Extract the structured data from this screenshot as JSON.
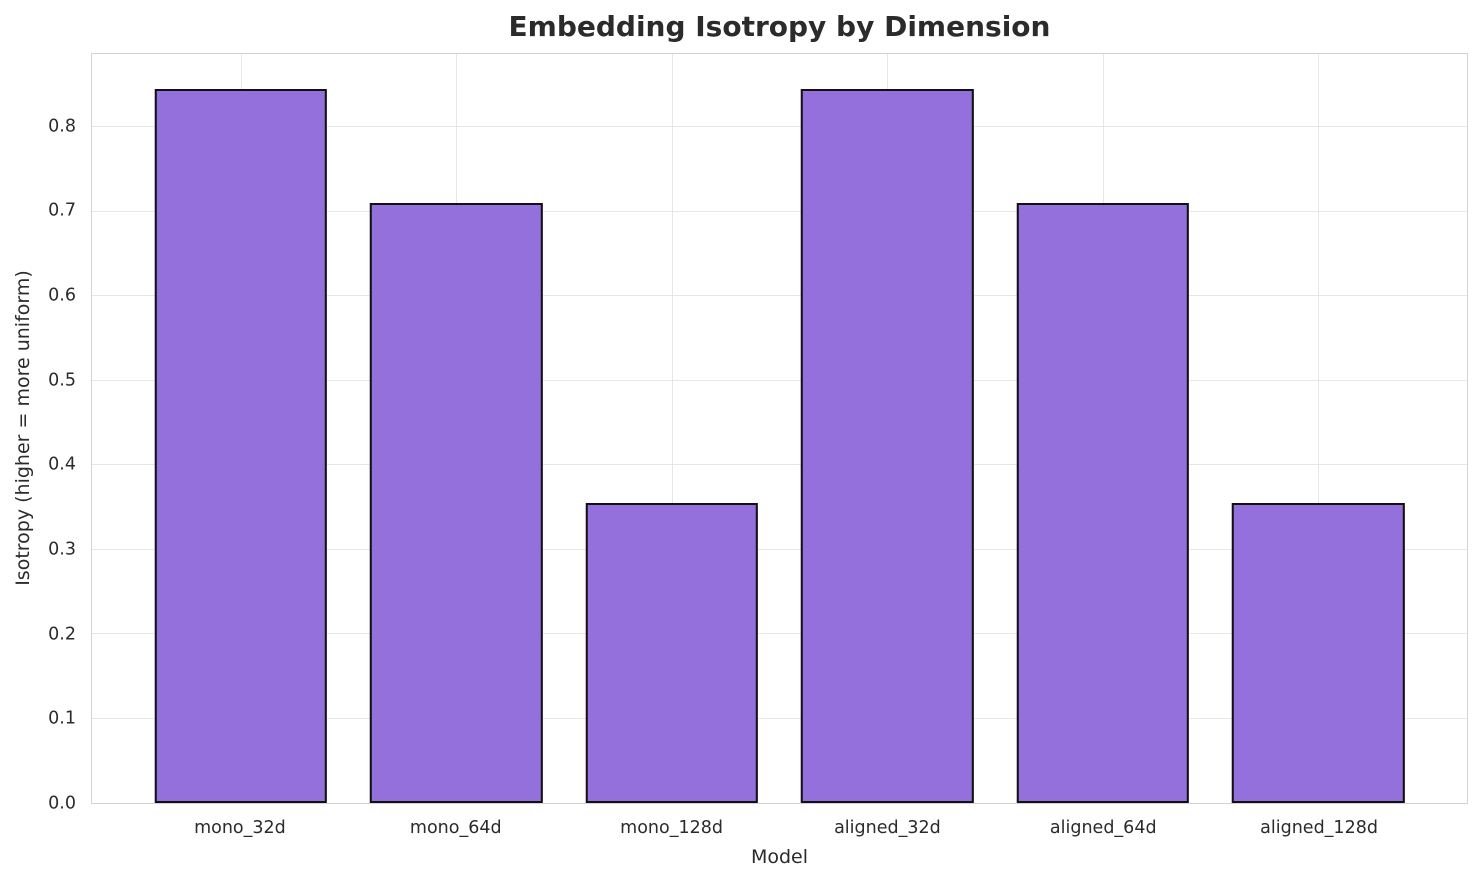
{
  "chart_data": {
    "type": "bar",
    "title": "Embedding Isotropy by Dimension",
    "xlabel": "Model",
    "ylabel": "Isotropy (higher = more uniform)",
    "categories": [
      "mono_32d",
      "mono_64d",
      "mono_128d",
      "aligned_32d",
      "aligned_64d",
      "aligned_128d"
    ],
    "values": [
      0.845,
      0.71,
      0.355,
      0.845,
      0.71,
      0.355
    ],
    "ytick_values": [
      0.0,
      0.1,
      0.2,
      0.3,
      0.4,
      0.5,
      0.6,
      0.7,
      0.8
    ],
    "ytick_labels": [
      "0.0",
      "0.1",
      "0.2",
      "0.3",
      "0.4",
      "0.5",
      "0.6",
      "0.7",
      "0.8"
    ],
    "ylim": [
      0,
      0.887
    ],
    "grid": true,
    "legend": false,
    "bar_width_fraction": 0.8,
    "colors": {
      "bar_fill": "#9370DB",
      "bar_edge": "#111111",
      "grid_line": "#e7e7e7",
      "spine": "#d3d3d3",
      "text": "#2b2b2b",
      "background": "#ffffff"
    }
  }
}
